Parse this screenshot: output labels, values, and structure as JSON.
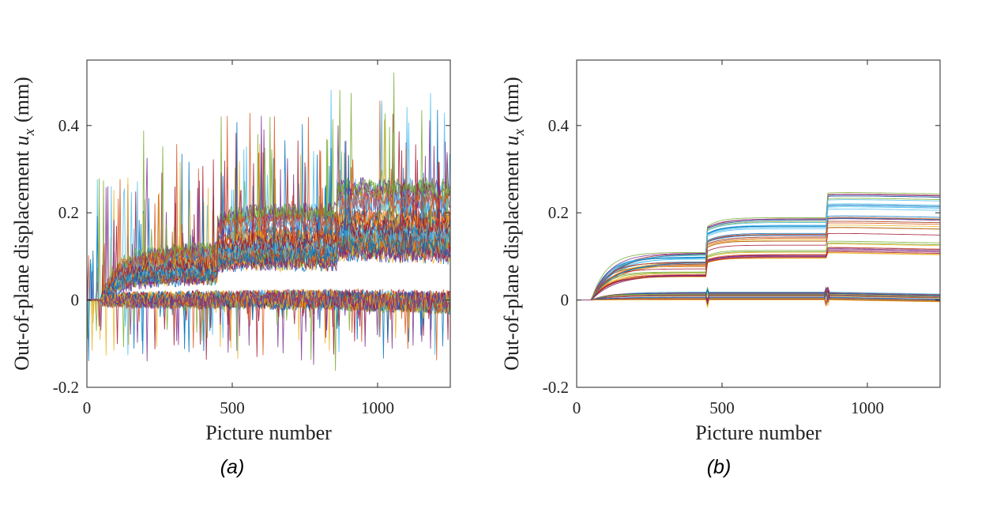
{
  "colors": {
    "palette": [
      "#0072bd",
      "#d95319",
      "#edb120",
      "#7e2f8e",
      "#77ac30",
      "#4dbeee",
      "#a2142f"
    ],
    "axis": "#262626"
  },
  "chart_data": [
    {
      "type": "line",
      "panel": "a",
      "caption": "(a)",
      "title": "",
      "xlabel": "Picture number",
      "ylabel": "Out-of-plane displacement",
      "ylabel_symbol": "u",
      "ylabel_subscript": "x",
      "ylabel_unit": "(mm)",
      "xlim": [
        0,
        1250
      ],
      "ylim": [
        -0.2,
        0.55
      ],
      "xticks": [
        0,
        500,
        1000
      ],
      "xtick_labels": [
        "0",
        "500",
        "1000"
      ],
      "yticks": [
        -0.2,
        0,
        0.2,
        0.4
      ],
      "ytick_labels": [
        "-0.2",
        "0",
        "0.2",
        "0.4"
      ],
      "grid": false,
      "legend": "none",
      "num_series": 60,
      "step_pictures": [
        50,
        450,
        860
      ],
      "description_of_series": "Noisy raw measurements; upper group plateaus near 0.08, 0.14, 0.18 after each load step with spikes up to about 0.5; lower group stays near 0 with spikes down to about -0.15",
      "series_groups": [
        {
          "group": "upper",
          "levels_after_steps": [
            0.08,
            0.14,
            0.18
          ],
          "noise": "high",
          "peak_max": 0.5
        },
        {
          "group": "lower",
          "levels_after_steps": [
            0.0,
            0.0,
            0.0
          ],
          "noise": "high",
          "peak_min": -0.15
        }
      ]
    },
    {
      "type": "line",
      "panel": "b",
      "caption": "(b)",
      "title": "",
      "xlabel": "Picture number",
      "ylabel": "Out-of-plane displacement",
      "ylabel_symbol": "u",
      "ylabel_subscript": "x",
      "ylabel_unit": "(mm)",
      "xlim": [
        0,
        1250
      ],
      "ylim": [
        -0.2,
        0.55
      ],
      "xticks": [
        0,
        500,
        1000
      ],
      "xtick_labels": [
        "0",
        "500",
        "1000"
      ],
      "yticks": [
        -0.2,
        0,
        0.2,
        0.4
      ],
      "ytick_labels": [
        "-0.2",
        "0",
        "0.2",
        "0.4"
      ],
      "grid": false,
      "legend": "none",
      "num_series": 60,
      "step_pictures": [
        50,
        450,
        860
      ],
      "description_of_series": "Smoothed traces; upper group rises from 0 after picture 50 to about 0.05-0.11, jumps at 450 to about 0.09-0.19, jumps at 860 to about 0.10-0.25; lower group stays near 0 to 0.02 with small transients at steps",
      "series_groups": [
        {
          "group": "upper",
          "levels_after_steps": [
            [
              0.05,
              0.11
            ],
            [
              0.09,
              0.19
            ],
            [
              0.1,
              0.25
            ]
          ]
        },
        {
          "group": "lower",
          "levels_after_steps": [
            [
              0.0,
              0.02
            ],
            [
              0.0,
              0.02
            ],
            [
              0.0,
              0.02
            ]
          ]
        }
      ]
    }
  ]
}
